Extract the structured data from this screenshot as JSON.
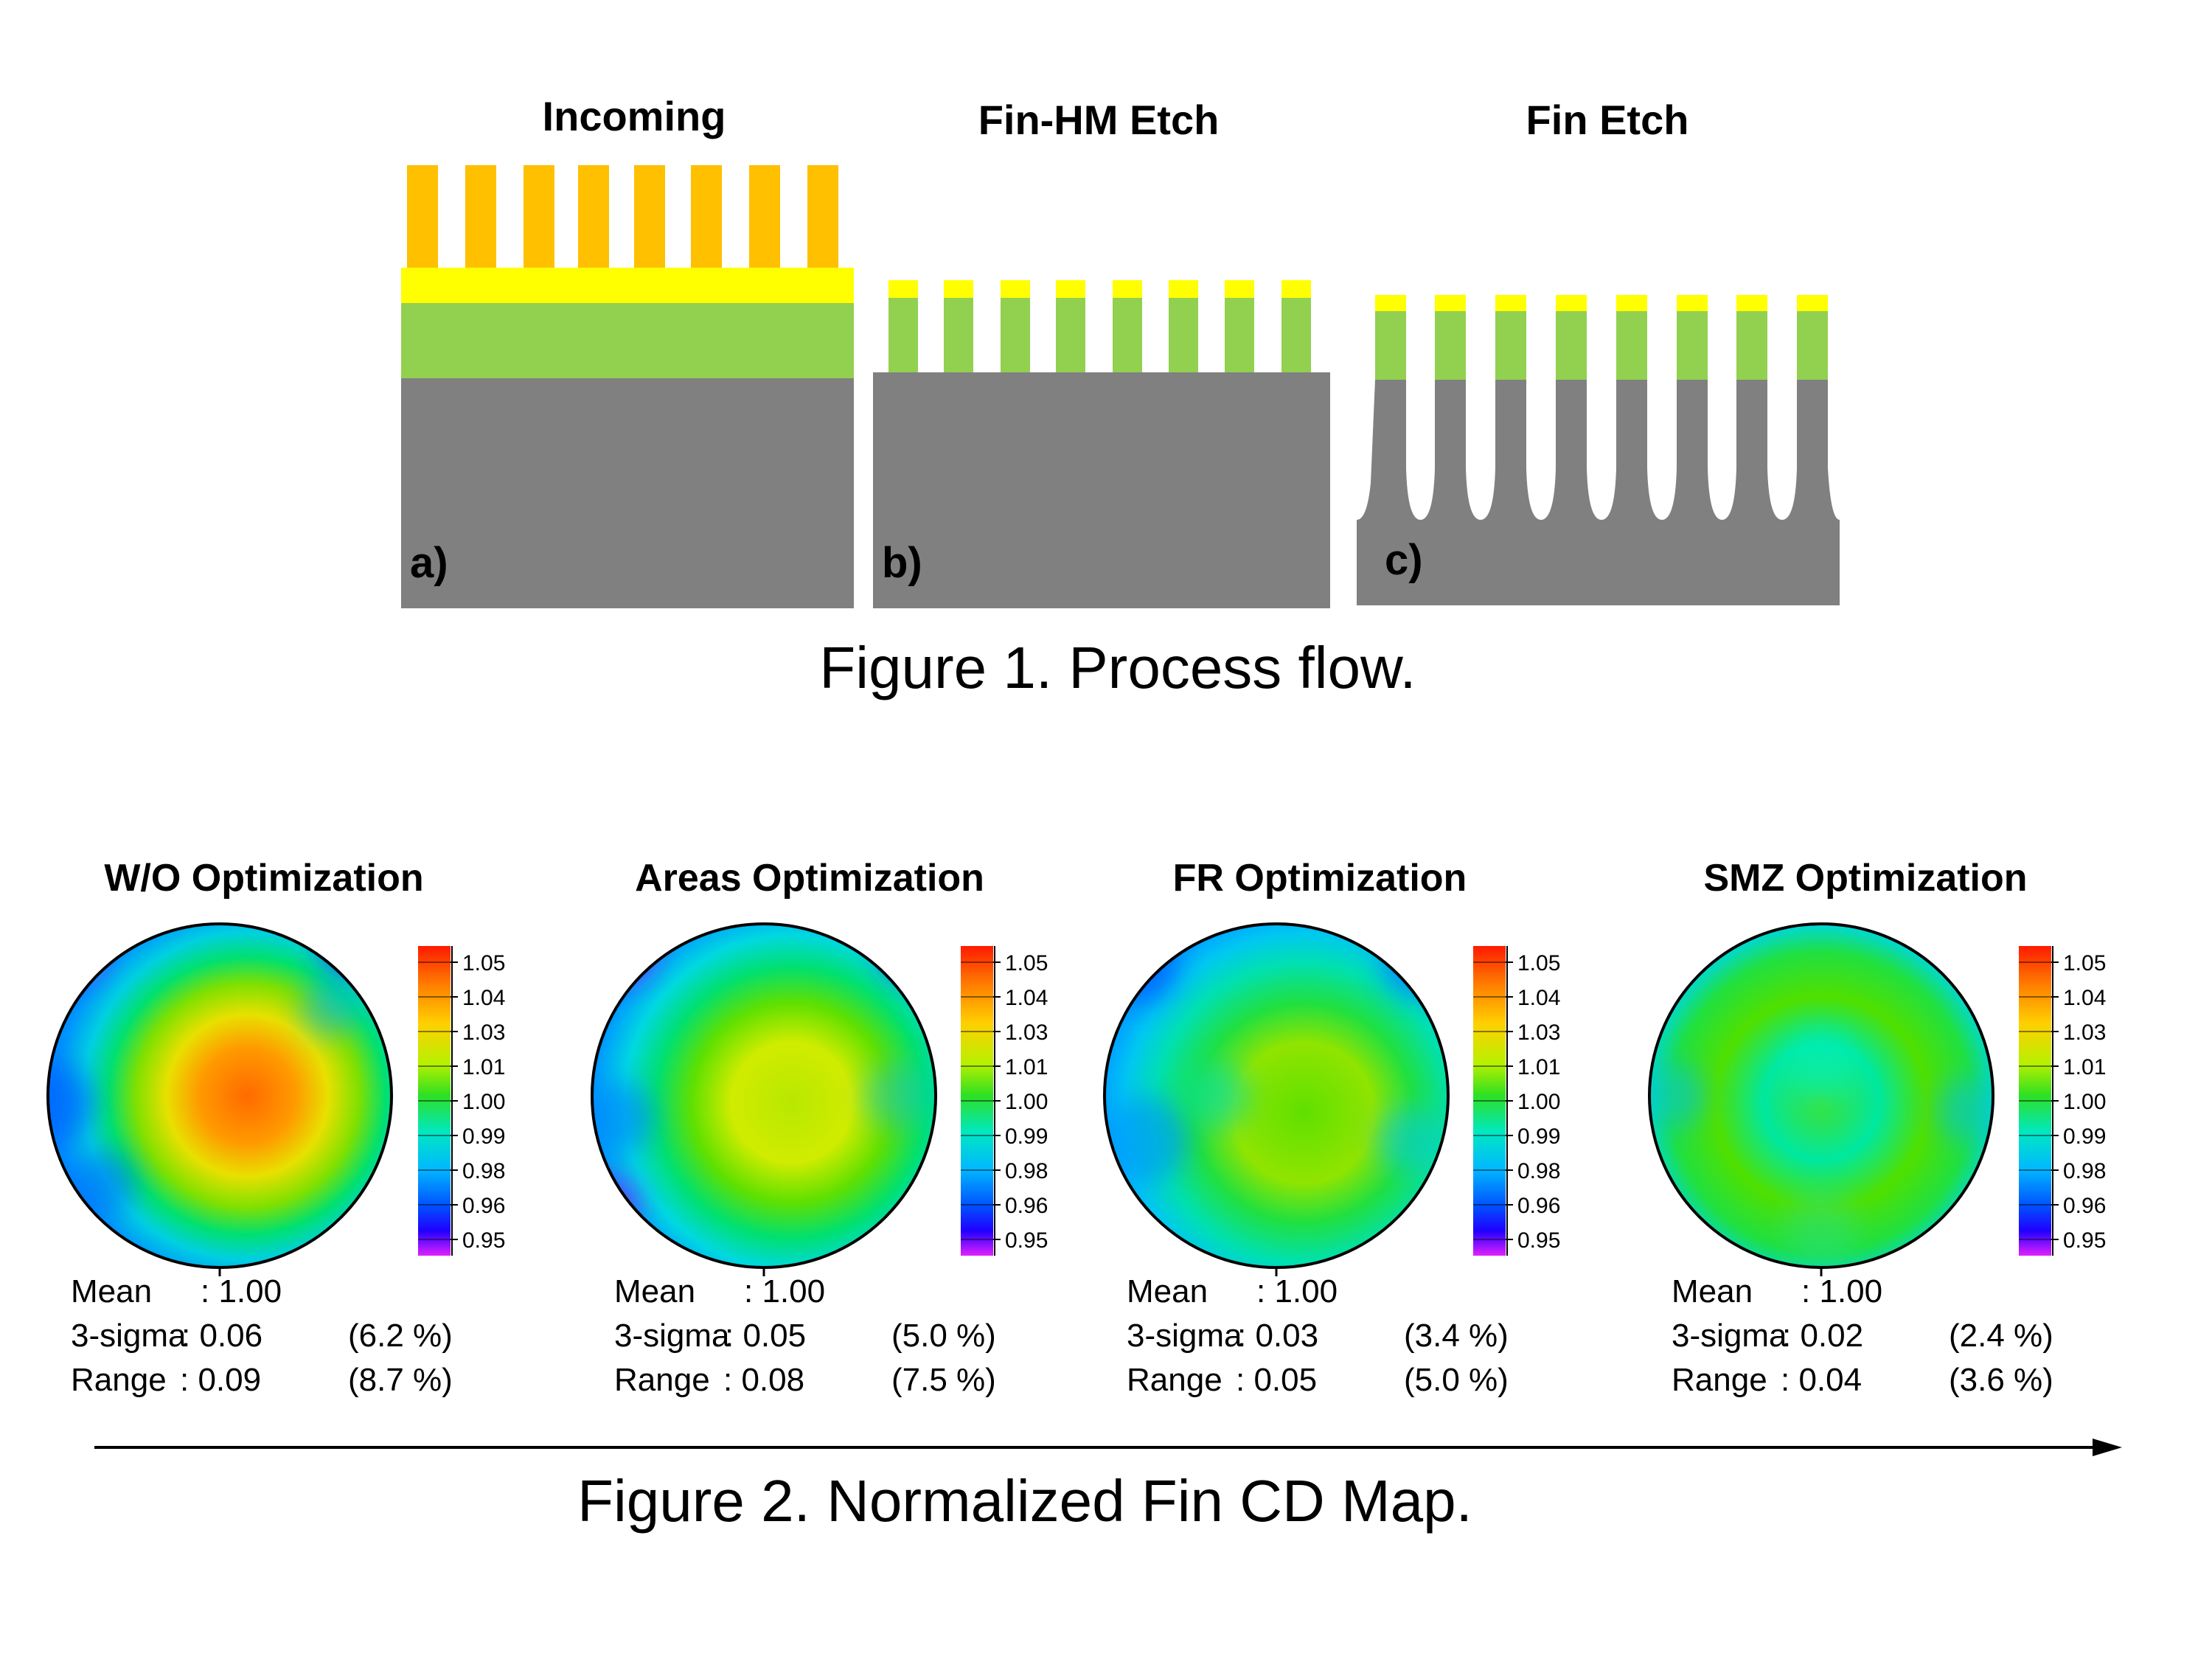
{
  "figure1": {
    "caption": "Figure 1. Process flow.",
    "panels": [
      {
        "title": "Incoming",
        "label": "a)"
      },
      {
        "title": "Fin-HM Etch",
        "label": "b)"
      },
      {
        "title": "Fin Etch",
        "label": "c)"
      }
    ],
    "colors": {
      "resist": "#FFC000",
      "hardmask": "#FFFF00",
      "film": "#92D050",
      "substrate": "#808080"
    }
  },
  "figure2": {
    "caption": "Figure 2. Normalized Fin CD Map.",
    "colorbar_ticks": [
      "1.05",
      "1.04",
      "1.03",
      "1.01",
      "1.00",
      "0.99",
      "0.98",
      "0.96",
      "0.95"
    ],
    "colorbar_range": [
      0.95,
      1.05
    ],
    "maps": [
      {
        "title": "W/O Optimization",
        "stats": [
          {
            "label": "Mean",
            "sep": " : ",
            "value": "1.00",
            "pct": ""
          },
          {
            "label": "3-sigma",
            "sep": ": ",
            "value": "0.06",
            "pct": "(6.2 %)"
          },
          {
            "label": "Range",
            "sep": " : ",
            "value": "0.09",
            "pct": "(8.7 %)"
          }
        ]
      },
      {
        "title": "Areas Optimization",
        "stats": [
          {
            "label": "Mean",
            "sep": " : ",
            "value": "1.00",
            "pct": ""
          },
          {
            "label": "3-sigma",
            "sep": ": ",
            "value": "0.05",
            "pct": "(5.0 %)"
          },
          {
            "label": "Range",
            "sep": " : ",
            "value": "0.08",
            "pct": "(7.5 %)"
          }
        ]
      },
      {
        "title": "FR Optimization",
        "stats": [
          {
            "label": "Mean",
            "sep": " : ",
            "value": "1.00",
            "pct": ""
          },
          {
            "label": "3-sigma",
            "sep": ": ",
            "value": "0.03",
            "pct": "(3.4 %)"
          },
          {
            "label": "Range",
            "sep": " : ",
            "value": "0.05",
            "pct": "(5.0 %)"
          }
        ]
      },
      {
        "title": "SMZ Optimization",
        "stats": [
          {
            "label": "Mean",
            "sep": " : ",
            "value": "1.00",
            "pct": ""
          },
          {
            "label": "3-sigma",
            "sep": ": ",
            "value": "0.02",
            "pct": "(2.4 %)"
          },
          {
            "label": "Range",
            "sep": " : ",
            "value": "0.04",
            "pct": "(3.6 %)"
          }
        ]
      }
    ]
  }
}
